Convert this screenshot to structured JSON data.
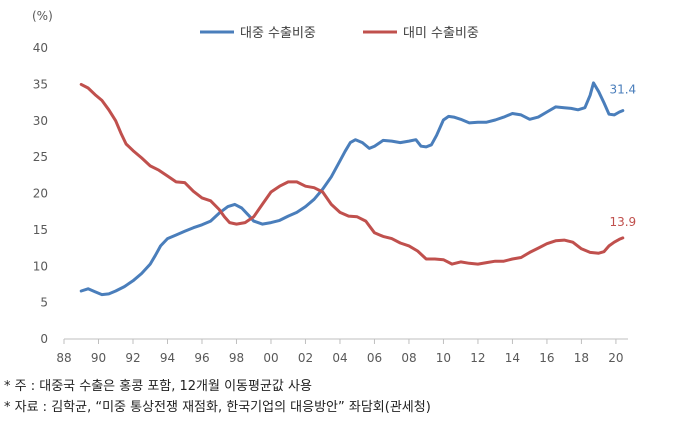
{
  "chart_data": {
    "type": "line",
    "y_unit": "(%)",
    "ylim": [
      0,
      40
    ],
    "yticks": [
      0,
      5,
      10,
      15,
      20,
      25,
      30,
      35,
      40
    ],
    "xlim": [
      1988,
      2020.7
    ],
    "xticks": [
      1988,
      1990,
      1992,
      1994,
      1996,
      1998,
      2000,
      2002,
      2004,
      2006,
      2008,
      2010,
      2012,
      2014,
      2016,
      2018,
      2020
    ],
    "xtick_labels": [
      "88",
      "90",
      "92",
      "94",
      "96",
      "98",
      "00",
      "02",
      "04",
      "06",
      "08",
      "10",
      "12",
      "14",
      "16",
      "18",
      "20"
    ],
    "grid": false,
    "legend": "top-center",
    "series": [
      {
        "name": "대중 수출비중",
        "color": "#4a7ebb",
        "end_label": "31.4",
        "x": [
          1989.0,
          1989.4,
          1989.8,
          1990.2,
          1990.6,
          1991.0,
          1991.5,
          1992.0,
          1992.5,
          1993.0,
          1993.3,
          1993.6,
          1994.0,
          1994.5,
          1995.0,
          1995.5,
          1996.0,
          1996.5,
          1997.0,
          1997.5,
          1997.9,
          1998.3,
          1998.7,
          1999.0,
          1999.5,
          2000.0,
          2000.5,
          2001.0,
          2001.5,
          2002.0,
          2002.5,
          2003.0,
          2003.5,
          2004.0,
          2004.3,
          2004.6,
          2004.9,
          2005.3,
          2005.7,
          2006.0,
          2006.5,
          2007.0,
          2007.5,
          2008.0,
          2008.4,
          2008.7,
          2009.0,
          2009.3,
          2009.6,
          2010.0,
          2010.3,
          2010.6,
          2011.0,
          2011.5,
          2012.0,
          2012.5,
          2013.0,
          2013.5,
          2014.0,
          2014.5,
          2015.0,
          2015.5,
          2016.0,
          2016.5,
          2017.0,
          2017.4,
          2017.8,
          2018.2,
          2018.5,
          2018.7,
          2019.0,
          2019.3,
          2019.6,
          2019.9,
          2020.2,
          2020.4
        ],
        "values": [
          6.6,
          6.9,
          6.5,
          6.1,
          6.2,
          6.6,
          7.2,
          8.0,
          9.0,
          10.3,
          11.5,
          12.8,
          13.8,
          14.3,
          14.8,
          15.3,
          15.7,
          16.2,
          17.3,
          18.2,
          18.5,
          18.0,
          17.0,
          16.2,
          15.8,
          16.0,
          16.3,
          16.9,
          17.4,
          18.2,
          19.2,
          20.6,
          22.3,
          24.5,
          25.8,
          27.0,
          27.4,
          27.0,
          26.2,
          26.5,
          27.3,
          27.2,
          27.0,
          27.2,
          27.4,
          26.5,
          26.4,
          26.7,
          28.0,
          30.1,
          30.6,
          30.5,
          30.2,
          29.7,
          29.8,
          29.8,
          30.1,
          30.5,
          31.0,
          30.8,
          30.2,
          30.5,
          31.2,
          31.9,
          31.8,
          31.7,
          31.5,
          31.8,
          33.5,
          35.2,
          34.0,
          32.5,
          30.9,
          30.8,
          31.2,
          31.4
        ]
      },
      {
        "name": "대미 수출비중",
        "color": "#c0504d",
        "end_label": "13.9",
        "x": [
          1989.0,
          1989.4,
          1989.8,
          1990.2,
          1990.6,
          1991.0,
          1991.3,
          1991.6,
          1992.0,
          1992.5,
          1993.0,
          1993.5,
          1994.0,
          1994.5,
          1995.0,
          1995.5,
          1996.0,
          1996.5,
          1997.0,
          1997.3,
          1997.6,
          1998.0,
          1998.5,
          1999.0,
          1999.5,
          2000.0,
          2000.5,
          2001.0,
          2001.5,
          2002.0,
          2002.5,
          2003.0,
          2003.5,
          2004.0,
          2004.5,
          2005.0,
          2005.5,
          2006.0,
          2006.5,
          2007.0,
          2007.5,
          2008.0,
          2008.5,
          2009.0,
          2009.5,
          2010.0,
          2010.5,
          2011.0,
          2011.5,
          2012.0,
          2012.5,
          2013.0,
          2013.5,
          2014.0,
          2014.5,
          2015.0,
          2015.5,
          2016.0,
          2016.5,
          2017.0,
          2017.5,
          2018.0,
          2018.5,
          2019.0,
          2019.3,
          2019.6,
          2019.9,
          2020.2,
          2020.4
        ],
        "values": [
          35.0,
          34.5,
          33.6,
          32.8,
          31.5,
          30.0,
          28.3,
          26.8,
          25.9,
          24.9,
          23.8,
          23.2,
          22.4,
          21.6,
          21.5,
          20.3,
          19.4,
          19.0,
          17.8,
          16.8,
          16.0,
          15.8,
          16.0,
          16.8,
          18.5,
          20.2,
          21.0,
          21.6,
          21.6,
          21.0,
          20.8,
          20.2,
          18.5,
          17.4,
          16.9,
          16.8,
          16.2,
          14.6,
          14.1,
          13.8,
          13.2,
          12.8,
          12.1,
          11.0,
          11.0,
          10.9,
          10.3,
          10.6,
          10.4,
          10.3,
          10.5,
          10.7,
          10.7,
          11.0,
          11.2,
          11.9,
          12.5,
          13.1,
          13.5,
          13.6,
          13.3,
          12.4,
          11.9,
          11.8,
          12.0,
          12.8,
          13.3,
          13.7,
          13.9
        ]
      }
    ]
  },
  "notes": [
    "* 주 : 대중국 수출은 홍콩 포함, 12개월 이동평균값 사용",
    "* 자료 : 김학균, “미중 통상전쟁 재점화, 한국기업의 대응방안” 좌담회(관세청)"
  ]
}
